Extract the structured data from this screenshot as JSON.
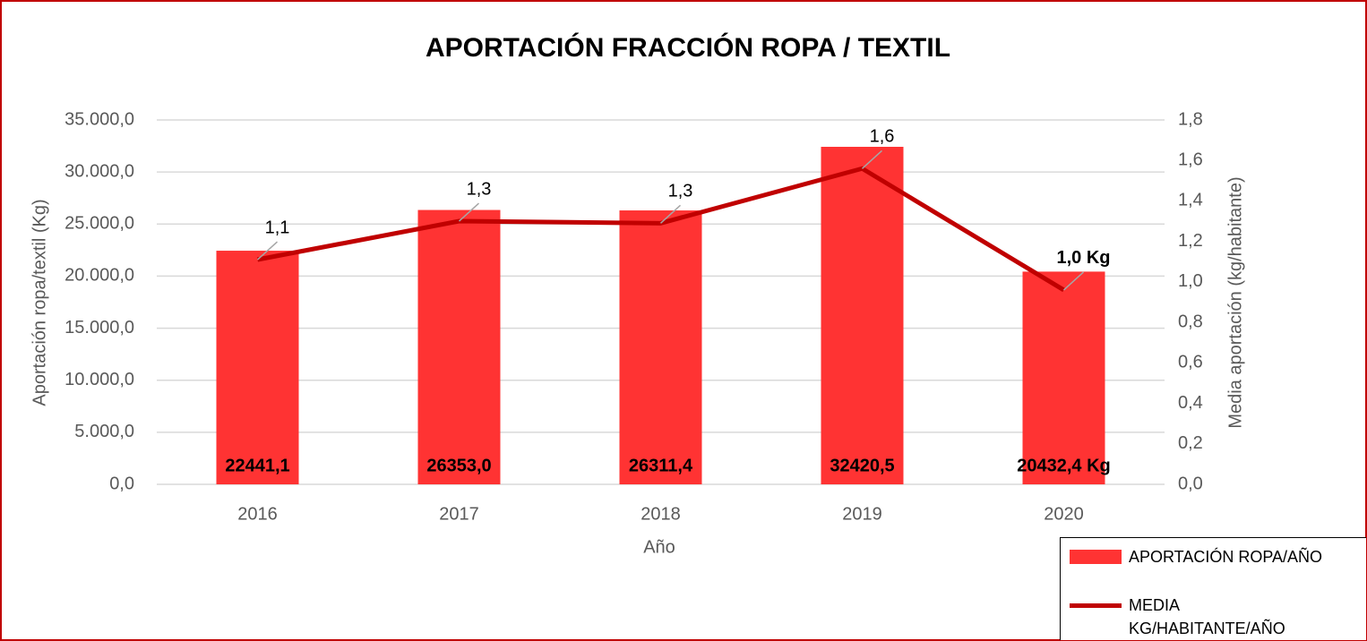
{
  "chart_data": {
    "type": "bar_line",
    "title": "APORTACIÓN FRACCIÓN ROPA / TEXTIL",
    "x_label": "Año",
    "y_label": "Aportación ropa/textil (Kg)",
    "y2_label": "Media aportación (kg/habitante)",
    "categories": [
      "2016",
      "2017",
      "2018",
      "2019",
      "2020"
    ],
    "series": [
      {
        "name": "APORTACIÓN ROPA/AÑO",
        "type": "bar",
        "color": "#ff3333",
        "values": [
          22441.1,
          26353.0,
          26311.4,
          32420.5,
          20432.4
        ],
        "value_labels": [
          "22441,1",
          "26353,0",
          "26311,4",
          "32420,5",
          "20432,4 Kg"
        ]
      },
      {
        "name": "MEDIA KG/HABITANTE/AÑO",
        "type": "line",
        "axis": "y2",
        "color": "#c00000",
        "values": [
          1.11,
          1.3,
          1.29,
          1.56,
          0.96
        ],
        "value_labels": [
          "1,1",
          "1,3",
          "1,3",
          "1,6",
          "1,0 Kg"
        ]
      }
    ],
    "ylim": [
      0,
      35000
    ],
    "yticks": [
      {
        "value": 0,
        "label": "0,0"
      },
      {
        "value": 5000,
        "label": "5.000,0"
      },
      {
        "value": 10000,
        "label": "10.000,0"
      },
      {
        "value": 15000,
        "label": "15.000,0"
      },
      {
        "value": 20000,
        "label": "20.000,0"
      },
      {
        "value": 25000,
        "label": "25.000,0"
      },
      {
        "value": 30000,
        "label": "30.000,0"
      },
      {
        "value": 35000,
        "label": "35.000,0"
      }
    ],
    "y2lim": [
      0,
      1.8
    ],
    "y2ticks": [
      {
        "value": 0,
        "label": "0,0"
      },
      {
        "value": 0.2,
        "label": "0,2"
      },
      {
        "value": 0.4,
        "label": "0,4"
      },
      {
        "value": 0.6,
        "label": "0,6"
      },
      {
        "value": 0.8,
        "label": "0,8"
      },
      {
        "value": 1.0,
        "label": "1,0"
      },
      {
        "value": 1.2,
        "label": "1,2"
      },
      {
        "value": 1.4,
        "label": "1,4"
      },
      {
        "value": 1.6,
        "label": "1,6"
      },
      {
        "value": 1.8,
        "label": "1,8"
      }
    ],
    "grid": true,
    "legend": "bottom-right"
  }
}
